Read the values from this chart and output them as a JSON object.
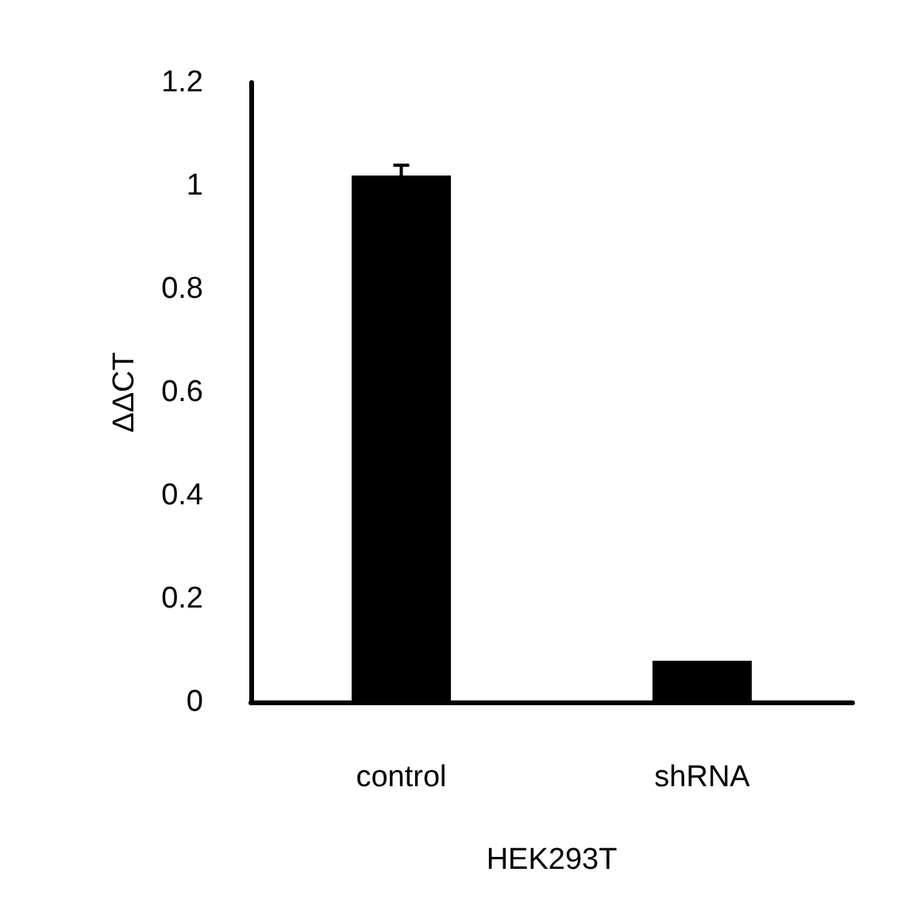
{
  "chart_data": {
    "type": "bar",
    "xlabel": "HEK293T",
    "ylabel": "ΔΔCT",
    "categories": [
      "control",
      "shRNA"
    ],
    "values": [
      1.02,
      0.08
    ],
    "errors": [
      0.02,
      null
    ],
    "color": "#000000",
    "ylim": [
      0,
      1.2
    ],
    "yticks": [
      0,
      0.2,
      0.4,
      0.6,
      0.8,
      1,
      1.2
    ],
    "grid": false
  }
}
